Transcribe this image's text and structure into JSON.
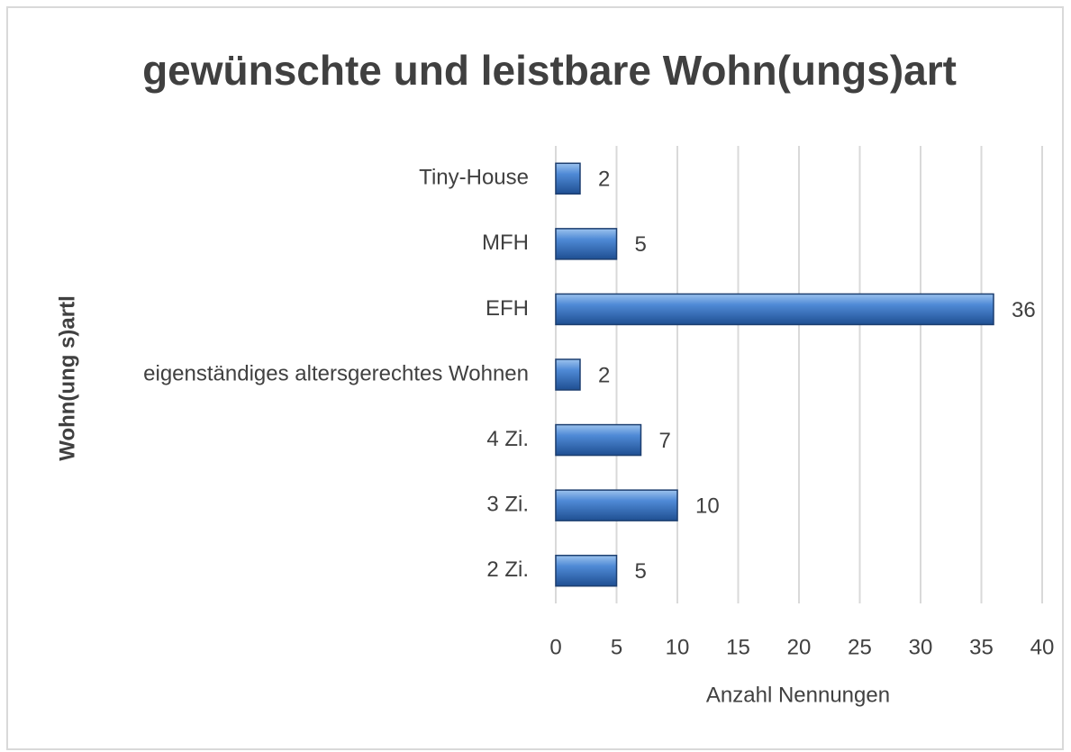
{
  "chart_data": {
    "type": "bar",
    "orientation": "horizontal",
    "title": "gewünschte und leistbare Wohn(ungs)art",
    "x_label": "Anzahl Nennungen",
    "y_label": "Wohn(ung s)artl",
    "categories": [
      "Tiny-House",
      "MFH",
      "EFH",
      "eigenständiges altersgerechtes Wohnen",
      "4 Zi.",
      "3 Zi.",
      "2 Zi."
    ],
    "values": [
      2,
      5,
      36,
      2,
      7,
      10,
      5
    ],
    "color": "#3a75c4",
    "xlim": [
      0,
      40
    ],
    "xticks": [
      0,
      5,
      10,
      15,
      20,
      25,
      30,
      35,
      40
    ],
    "grid": true
  }
}
